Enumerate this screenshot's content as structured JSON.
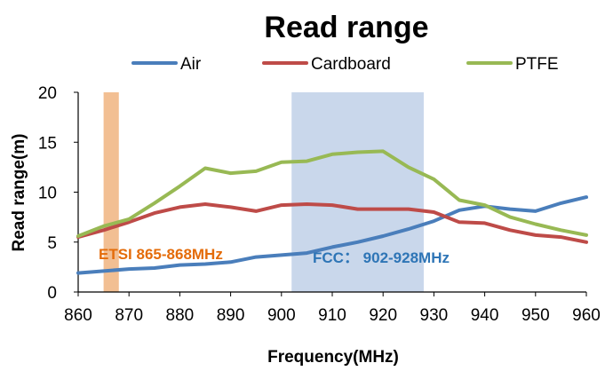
{
  "chart_data": {
    "type": "line",
    "title": "Read range",
    "xlabel": "Frequency(MHz)",
    "ylabel": "Read range(m)",
    "xlim": [
      860,
      960
    ],
    "ylim": [
      0,
      20
    ],
    "x_ticks": [
      860,
      870,
      880,
      890,
      900,
      910,
      920,
      930,
      940,
      950,
      960
    ],
    "y_ticks": [
      0,
      5,
      10,
      15,
      20
    ],
    "grid": false,
    "legend_position": "top",
    "series": [
      {
        "name": "Air",
        "color": "#4a7ebb",
        "x": [
          860,
          865,
          870,
          875,
          880,
          885,
          890,
          895,
          900,
          905,
          910,
          915,
          920,
          925,
          930,
          935,
          940,
          945,
          950,
          955,
          960
        ],
        "y": [
          1.9,
          2.1,
          2.3,
          2.4,
          2.7,
          2.8,
          3.0,
          3.5,
          3.7,
          3.9,
          4.5,
          5.0,
          5.6,
          6.3,
          7.1,
          8.2,
          8.6,
          8.3,
          8.1,
          8.9,
          9.5
        ]
      },
      {
        "name": "Cardboard",
        "color": "#be4b48",
        "x": [
          860,
          865,
          870,
          875,
          880,
          885,
          890,
          895,
          900,
          905,
          910,
          915,
          920,
          925,
          930,
          935,
          940,
          945,
          950,
          955,
          960
        ],
        "y": [
          5.5,
          6.2,
          7.0,
          7.9,
          8.5,
          8.8,
          8.5,
          8.1,
          8.7,
          8.8,
          8.7,
          8.3,
          8.3,
          8.3,
          8.0,
          7.0,
          6.9,
          6.2,
          5.7,
          5.5,
          5.0
        ]
      },
      {
        "name": "PTFE",
        "color": "#98b954",
        "x": [
          860,
          865,
          870,
          875,
          880,
          885,
          890,
          895,
          900,
          905,
          910,
          915,
          920,
          925,
          930,
          935,
          940,
          945,
          950,
          955,
          960
        ],
        "y": [
          5.6,
          6.6,
          7.3,
          8.9,
          10.6,
          12.4,
          11.9,
          12.1,
          13.0,
          13.1,
          13.8,
          14.0,
          14.1,
          12.5,
          11.3,
          9.2,
          8.7,
          7.5,
          6.8,
          6.2,
          5.7
        ]
      }
    ],
    "bands": [
      {
        "label": "ETSI 865-868MHz",
        "x_start": 865,
        "x_end": 868,
        "color": "#f2bf93",
        "text_color": "#e46c0a"
      },
      {
        "label": "FCC： 902-928MHz",
        "x_start": 902,
        "x_end": 928,
        "color": "#c9d7eb",
        "text_color": "#2e75b6"
      }
    ]
  }
}
